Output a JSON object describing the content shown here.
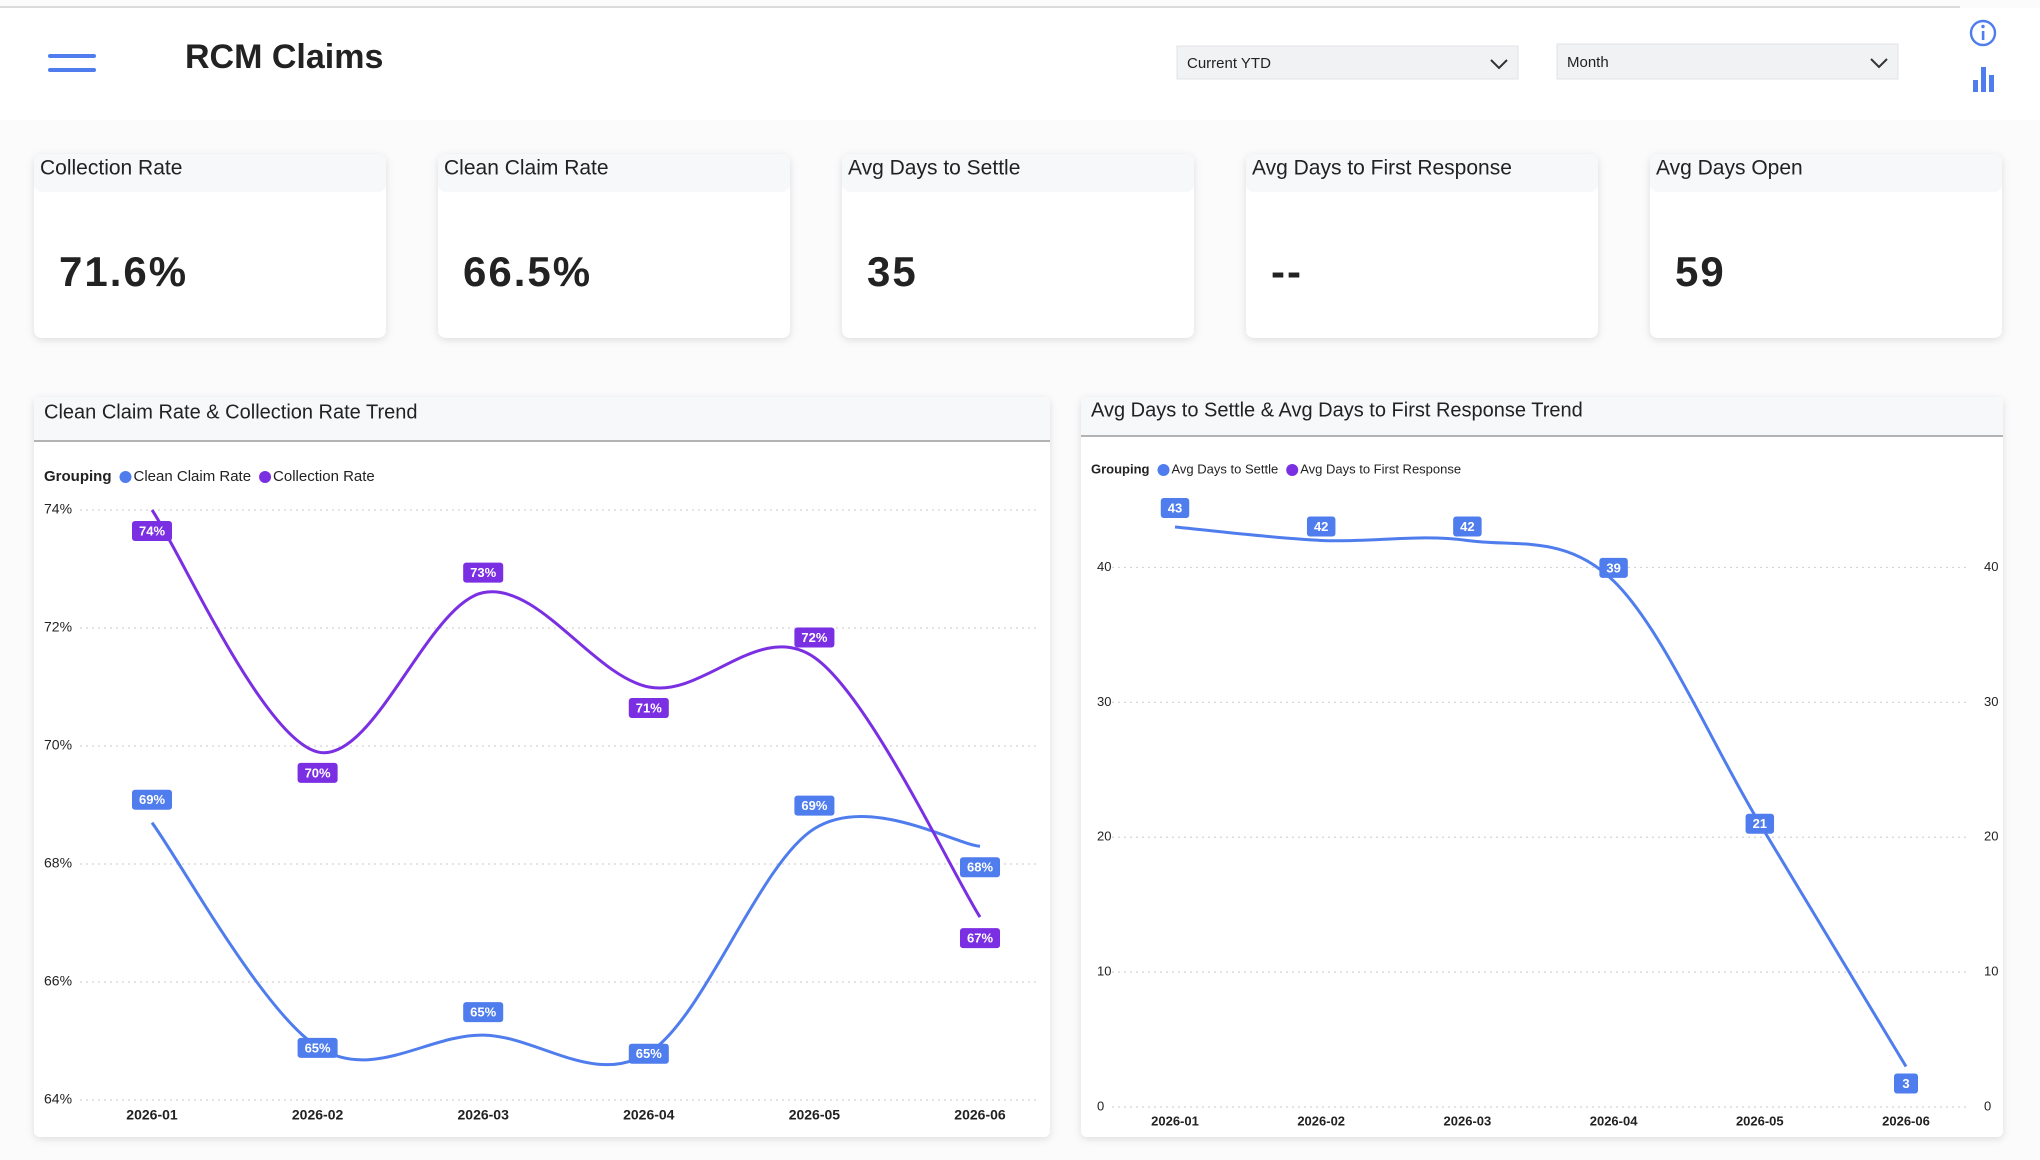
{
  "header": {
    "title": "RCM Claims"
  },
  "filters": [
    "Current YTD",
    "Month"
  ],
  "kpis": [
    {
      "label": "Collection Rate",
      "value": "71.6%"
    },
    {
      "label": "Clean Claim Rate",
      "value": "66.5%"
    },
    {
      "label": "Avg Days to Settle",
      "value": "35"
    },
    {
      "label": "Avg Days to First Response",
      "value": "--"
    },
    {
      "label": "Avg Days Open",
      "value": "59"
    }
  ],
  "chart_data": [
    {
      "type": "line",
      "title": "Clean Claim Rate & Collection Rate Trend",
      "legend_title": "Grouping",
      "categories": [
        "2026-01",
        "2026-02",
        "2026-03",
        "2026-04",
        "2026-05",
        "2026-06"
      ],
      "series": [
        {
          "name": "Clean Claim Rate",
          "color": "#4f7ded",
          "values": [
            68.7,
            64.9,
            65.1,
            64.8,
            68.6,
            68.3
          ],
          "value_labels": [
            "69%",
            "65%",
            "65%",
            "65%",
            "69%",
            "68%"
          ]
        },
        {
          "name": "Collection Rate",
          "color": "#7b2fe3",
          "values": [
            74.0,
            69.9,
            72.6,
            71.0,
            71.5,
            67.1
          ],
          "value_labels": [
            "74%",
            "70%",
            "73%",
            "71%",
            "72%",
            "67%"
          ]
        }
      ],
      "ylim": [
        64,
        74
      ],
      "yticks": [
        {
          "value": 64,
          "label": "64%"
        },
        {
          "value": 66,
          "label": "66%"
        },
        {
          "value": 68,
          "label": "68%"
        },
        {
          "value": 70,
          "label": "70%"
        },
        {
          "value": 72,
          "label": "72%"
        },
        {
          "value": 74,
          "label": "74%"
        }
      ],
      "grid": true
    },
    {
      "type": "line",
      "title": "Avg Days to Settle & Avg Days to First Response Trend",
      "legend_title": "Grouping",
      "categories": [
        "2026-01",
        "2026-02",
        "2026-03",
        "2026-04",
        "2026-05",
        "2026-06"
      ],
      "series": [
        {
          "name": "Avg Days to Settle",
          "color": "#4f7ded",
          "values": [
            43,
            42,
            42,
            39,
            21,
            3
          ]
        },
        {
          "name": "Avg Days to First Response",
          "color": "#7b2fe3",
          "values": [
            null,
            null,
            null,
            null,
            null,
            null
          ],
          "axis": "y2"
        }
      ],
      "ylim": [
        0,
        45
      ],
      "yticks": [
        0,
        10,
        20,
        30,
        40
      ],
      "y2lim": [
        0,
        45
      ],
      "y2ticks": [
        0,
        10,
        20,
        30,
        40
      ],
      "grid": true
    }
  ]
}
